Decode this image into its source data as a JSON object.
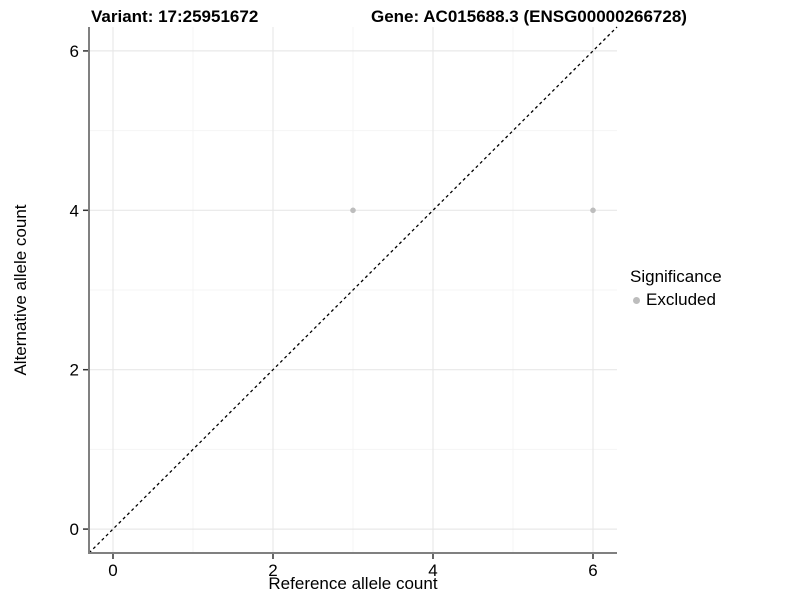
{
  "titles": {
    "left": "Variant: 17:25951672",
    "right": "Gene: AC015688.3 (ENSG00000266728)"
  },
  "legend": {
    "title": "Significance",
    "items": [
      {
        "label": "Excluded",
        "color": "#bdbdbd"
      }
    ]
  },
  "colors": {
    "background": "#ffffff",
    "grid_major": "#e8e8e8",
    "grid_minor": "#f4f4f4",
    "axis_line": "#808080",
    "tick_mark": "#333333",
    "tick_label": "#000000",
    "reference_line": "#000000",
    "point": "#bdbdbd"
  },
  "chart_data": {
    "type": "scatter",
    "title_left": "Variant: 17:25951672",
    "title_right": "Gene: AC015688.3 (ENSG00000266728)",
    "xlabel": "Reference allele count",
    "ylabel": "Alternative allele count",
    "xlim": [
      -0.3,
      6.3
    ],
    "ylim": [
      -0.3,
      6.3
    ],
    "x_ticks": [
      0,
      2,
      4,
      6
    ],
    "y_ticks": [
      0,
      2,
      4,
      6
    ],
    "x_minor_ticks": [
      1,
      3,
      5
    ],
    "y_minor_ticks": [
      1,
      3,
      5
    ],
    "grid": true,
    "legend_position": "right",
    "legend_title": "Significance",
    "series": [
      {
        "name": "Excluded",
        "color": "#bdbdbd",
        "points": [
          {
            "x": 3,
            "y": 4
          },
          {
            "x": 6,
            "y": 4
          }
        ]
      }
    ],
    "reference_line": {
      "type": "identity",
      "slope": 1,
      "intercept": 0,
      "style": "dashed",
      "color": "#000000"
    }
  }
}
